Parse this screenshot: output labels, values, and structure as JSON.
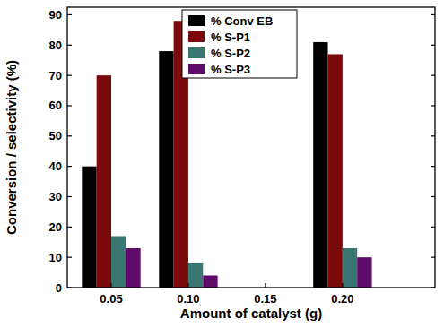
{
  "chart_data": {
    "type": "bar",
    "x_label": "Amount of catalyst (g)",
    "y_label": "Conversion / selectivity (%)",
    "categories": [
      "0.05",
      "0.10",
      "0.15",
      "0.20"
    ],
    "series": [
      {
        "name": "% Conv EB",
        "color": "#000000",
        "values": [
          40,
          78,
          null,
          81
        ]
      },
      {
        "name": "% S-P1",
        "color": "#7a0a0c",
        "values": [
          70,
          88,
          null,
          77
        ]
      },
      {
        "name": "% S-P2",
        "color": "#3a7770",
        "values": [
          17,
          8,
          null,
          13
        ]
      },
      {
        "name": "% S-P3",
        "color": "#5e0b6a",
        "values": [
          13,
          4,
          null,
          10
        ]
      }
    ],
    "ylim": [
      0,
      92.5
    ],
    "yticks": [
      0,
      10,
      20,
      30,
      40,
      50,
      60,
      70,
      80,
      90
    ],
    "grid": false,
    "legend": "top"
  }
}
